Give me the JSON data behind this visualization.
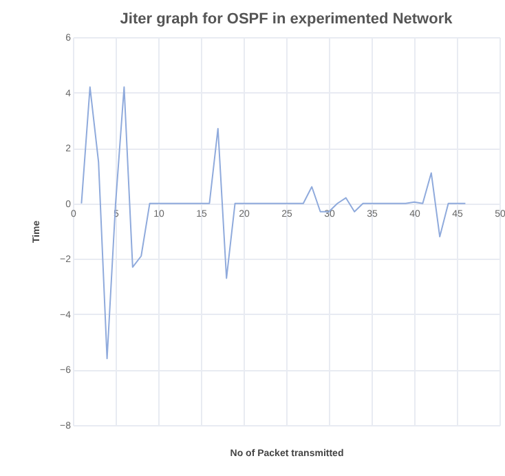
{
  "chart_data": {
    "type": "line",
    "title": "Jiter graph for OSPF in experimented Network",
    "xlabel": "No of Packet transmitted",
    "ylabel": "Time",
    "x": [
      1,
      2,
      3,
      4,
      5,
      6,
      7,
      8,
      9,
      10,
      11,
      12,
      13,
      14,
      15,
      16,
      17,
      18,
      19,
      20,
      21,
      22,
      23,
      24,
      25,
      26,
      27,
      28,
      29,
      30,
      31,
      32,
      33,
      34,
      35,
      36,
      37,
      38,
      39,
      40,
      41,
      42,
      43,
      44,
      45,
      46
    ],
    "series": [
      {
        "color": "#8faadc",
        "values": [
          0,
          4.2,
          1.5,
          -5.6,
          0,
          4.2,
          -2.3,
          -1.9,
          0,
          0,
          0,
          0,
          0,
          0,
          0,
          0,
          2.7,
          -2.7,
          0,
          0,
          0,
          0,
          0,
          0,
          0,
          0,
          0,
          0.6,
          -0.3,
          -0.3,
          0,
          0.2,
          -0.3,
          0,
          0,
          0,
          0,
          0,
          0,
          0.05,
          0,
          1.1,
          -1.2,
          0,
          0,
          0
        ]
      }
    ],
    "xlim": [
      0,
      50
    ],
    "xticks": [
      0,
      5,
      10,
      15,
      20,
      25,
      30,
      35,
      40,
      45,
      50
    ],
    "ylim": [
      -8,
      6
    ],
    "yticks": [
      -8,
      -6,
      -4,
      -2,
      0,
      2,
      4,
      6
    ],
    "grid": true,
    "marker": "none",
    "line_style": "solid"
  }
}
